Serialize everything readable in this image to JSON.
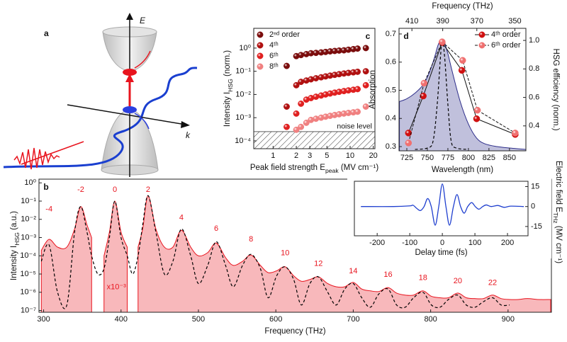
{
  "diagram": {
    "panel_label": "a",
    "energy_label": "E",
    "momentum_label": "k"
  },
  "chart_data": [
    {
      "type": "line",
      "panel_label": "b",
      "xlabel": "Frequency (THz)",
      "ylabel": {
        "text": "Intensity I",
        "sub": "HSG",
        "after": " (a.u.)"
      },
      "xlim": [
        294,
        956
      ],
      "ylim": [
        8e-08,
        1.6
      ],
      "ylog": true,
      "xticks": [
        300,
        400,
        500,
        600,
        700,
        800,
        900
      ],
      "yticks": [
        {
          "value": 1e-07,
          "label": "10⁻⁷"
        },
        {
          "value": 1e-06,
          "label": "10⁻⁶"
        },
        {
          "value": 1e-05,
          "label": "10⁻⁵"
        },
        {
          "value": 0.0001,
          "label": "10⁻⁴"
        },
        {
          "value": 0.001,
          "label": "10⁻³"
        },
        {
          "value": 0.01,
          "label": "10⁻²"
        },
        {
          "value": 0.1,
          "label": "10⁻¹"
        },
        {
          "value": 1,
          "label": "10⁰"
        }
      ],
      "x": [
        297,
        307,
        318,
        330,
        340,
        348,
        356,
        362,
        370,
        378,
        385,
        392,
        400,
        408,
        415,
        422,
        428,
        435,
        445,
        456,
        467,
        478,
        490,
        500,
        512,
        523,
        535,
        545,
        557,
        568,
        580,
        590,
        601,
        612,
        623,
        633,
        644,
        655,
        667,
        678,
        689,
        700,
        711,
        722,
        733,
        745,
        756,
        767,
        778,
        790,
        801,
        812,
        823,
        835,
        846,
        857,
        868,
        880,
        891,
        902,
        913,
        925,
        940,
        955
      ],
      "series": [
        {
          "style": "area",
          "color": "#e8141e",
          "values": [
            0.0002,
            0.0008,
            0.0003,
            0.0003,
            0.003,
            0.05,
            0.005,
            0.001,
            null,
            0.0001,
            0.002,
            0.1,
            0.002,
            0.0003,
            null,
            0.0003,
            0.003,
            0.2,
            0.003,
            0.0003,
            0.0003,
            0.0025,
            0.0003,
            0.0001,
            0.00015,
            0.0005,
            8e-05,
            3e-05,
            5e-05,
            0.00011,
            3e-05,
            1.2e-05,
            1.5e-05,
            2.5e-05,
            8e-06,
            4e-06,
            5e-06,
            7e-06,
            3e-06,
            2e-06,
            2e-06,
            3.5e-06,
            1.5e-06,
            1.2e-06,
            1.1e-06,
            1.8e-06,
            9e-07,
            7e-07,
            7e-07,
            1.2e-06,
            6e-07,
            5e-07,
            5e-07,
            9e-07,
            5e-07,
            4.5e-07,
            4.5e-07,
            7e-07,
            4.5e-07,
            4e-07,
            4e-07,
            4.5e-07,
            4e-07,
            4e-07
          ]
        },
        {
          "style": "dashed",
          "color": "#000000",
          "values": [
            5e-05,
            0.0004,
            1e-06,
            2e-07,
            0.002,
            0.05,
            0.002,
            0.0001,
            1e-05,
            2e-05,
            0.001,
            0.1,
            0.001,
            0.0001,
            1e-05,
            0.0001,
            0.005,
            0.2,
            0.002,
            1e-05,
            5e-05,
            0.003,
            0.0001,
            3e-06,
            3e-05,
            0.0006,
            3e-05,
            2e-06,
            3e-05,
            0.00012,
            2e-05,
            5e-07,
            8e-06,
            2.5e-05,
            5e-06,
            2e-07,
            3e-06,
            7e-06,
            1e-06,
            2e-07,
            1.5e-06,
            3e-06,
            5e-07,
            1.5e-07,
            8e-07,
            1.5e-06,
            2e-07,
            1.5e-07,
            5e-07,
            1e-06,
            2e-07,
            1.5e-07,
            4e-07,
            7e-07,
            2e-07,
            1.5e-07,
            3e-07,
            5e-07,
            2e-07,
            2e-07,
            null,
            null,
            null,
            null
          ]
        }
      ],
      "annotation_color": "#e8141e",
      "annotations": [
        {
          "text": "-4",
          "x": 307,
          "y": 0.036
        },
        {
          "text": "-2",
          "x": 348,
          "y": 0.41
        },
        {
          "text": "0",
          "x": 392,
          "y": 0.41
        },
        {
          "text": "2",
          "x": 435,
          "y": 0.41
        },
        {
          "text": "4",
          "x": 478,
          "y": 0.012
        },
        {
          "text": "6",
          "x": 523,
          "y": 0.003
        },
        {
          "text": "8",
          "x": 568,
          "y": 0.0008
        },
        {
          "text": "10",
          "x": 612,
          "y": 0.00014
        },
        {
          "text": "12",
          "x": 655,
          "y": 3.6e-05
        },
        {
          "text": "14",
          "x": 700,
          "y": 1.4e-05
        },
        {
          "text": "16",
          "x": 745,
          "y": 9e-06
        },
        {
          "text": "18",
          "x": 790,
          "y": 6e-06
        },
        {
          "text": "20",
          "x": 835,
          "y": 4e-06
        },
        {
          "text": "22",
          "x": 880,
          "y": 3.3e-06
        },
        {
          "text": "x10⁻³",
          "x": 394,
          "y": 1.9e-06
        }
      ]
    },
    {
      "type": "line",
      "yaxis_side": "right",
      "xlabel": "Delay time (fs)",
      "ylabel": {
        "text": "Electric field E",
        "sub": "THz",
        "after": " (MV cm⁻¹)"
      },
      "xlim": [
        -270,
        263
      ],
      "ylim": [
        -22,
        19
      ],
      "xticks": [
        -200,
        -100,
        0,
        100,
        200
      ],
      "yticks": [
        -15,
        0,
        15
      ],
      "x": [
        -250,
        -150,
        -100,
        -90,
        -78,
        -67,
        -56,
        -45,
        -34,
        -22,
        -11,
        0,
        11,
        22,
        34,
        45,
        56,
        67,
        78,
        90,
        101,
        112,
        124,
        135,
        150,
        170,
        190,
        210,
        250
      ],
      "series": [
        {
          "style": "line",
          "color": "#1f3fcf",
          "values": [
            0,
            0,
            0.5,
            1,
            -1.5,
            -3,
            0,
            6,
            0,
            -14,
            0,
            17,
            0,
            -14,
            0,
            9,
            0,
            -5,
            0,
            3,
            0,
            -2,
            0,
            1.2,
            0,
            0.8,
            -0.6,
            0.3,
            0
          ]
        }
      ]
    },
    {
      "type": "scatter",
      "panel_label": "c",
      "xlabel": {
        "text": "Peak field strength E",
        "sub": "peak",
        "after": " (MV cm⁻¹)"
      },
      "ylabel": {
        "text": "Intensity I",
        "sub": "HSG",
        "after": " (norm.)"
      },
      "xlog": true,
      "ylog": true,
      "xlim": [
        0.56,
        21
      ],
      "ylim": [
        4.6e-05,
        7.1
      ],
      "xticks": [
        1,
        2,
        3,
        5,
        10,
        20
      ],
      "yticks": [
        {
          "value": 0.0001,
          "label": "10⁻⁴"
        },
        {
          "value": 0.001,
          "label": "10⁻³"
        },
        {
          "value": 0.01,
          "label": "10⁻²"
        },
        {
          "value": 0.1,
          "label": "10⁻¹"
        },
        {
          "value": 1,
          "label": "10⁰"
        }
      ],
      "noise_level": 0.00025,
      "noise_label": "noise level",
      "legend": "upper left",
      "x": [
        1.5,
        2.0,
        2.3,
        2.7,
        3.1,
        3.6,
        4.2,
        4.8,
        5.5,
        6.3,
        7.2,
        8.3,
        9.5,
        11,
        12.5,
        16
      ],
      "series": [
        {
          "name": "2ⁿᵈ order",
          "color": "#7a0c0c",
          "values": [
            0.17,
            0.45,
            0.5,
            0.55,
            0.6,
            0.62,
            0.65,
            0.68,
            0.72,
            0.75,
            0.78,
            0.8,
            0.85,
            0.9,
            0.95,
            1.0
          ]
        },
        {
          "name": "4ᵗʰ",
          "color": "#b01010",
          "values": [
            0.003,
            0.025,
            0.035,
            0.04,
            0.045,
            0.05,
            0.055,
            0.06,
            0.065,
            0.07,
            0.075,
            0.08,
            0.085,
            0.09,
            0.095,
            0.1
          ]
        },
        {
          "name": "6ᵗʰ",
          "color": "#e02020",
          "values": [
            0.0004,
            0.0015,
            0.004,
            0.006,
            0.007,
            0.008,
            0.009,
            0.01,
            0.011,
            0.012,
            0.013,
            0.014,
            0.015,
            0.016,
            0.017,
            0.025
          ]
        },
        {
          "name": "8ᵗʰ",
          "color": "#f08080",
          "values": [
            null,
            0.0003,
            0.0004,
            0.0006,
            0.0008,
            0.0009,
            0.001,
            0.0011,
            0.0012,
            0.0013,
            0.0014,
            0.0015,
            0.0016,
            0.0017,
            0.0018,
            0.003
          ]
        }
      ]
    },
    {
      "type": "line",
      "panel_label": "d",
      "xlabel": "Wavelength (nm)",
      "x2label": "Frequency (THz)",
      "ylabel": "Absorption",
      "y2label": "HSG efficiency (norm.)",
      "xlim": [
        715.5,
        870
      ],
      "ylim": [
        0.285,
        0.72
      ],
      "y2lim": [
        0.225,
        1.085
      ],
      "xticks": [
        725,
        750,
        775,
        800,
        825,
        850
      ],
      "x2ticks": [
        410,
        390,
        370,
        350
      ],
      "yticks": [
        0.3,
        0.4,
        0.5,
        0.6,
        0.7
      ],
      "y2ticks": [
        0.4,
        0.6,
        0.8,
        {
          "value": 1.0,
          "label": "1.0"
        }
      ],
      "legend": "upper right",
      "series": [
        {
          "style": "area",
          "color": "#2e2e8a",
          "x": [
            716,
            725,
            735,
            745,
            752,
            758,
            763,
            767,
            770,
            775,
            780,
            790,
            800,
            810,
            820,
            835,
            850,
            870
          ],
          "values": [
            0.46,
            0.47,
            0.49,
            0.52,
            0.56,
            0.61,
            0.66,
            0.68,
            0.675,
            0.63,
            0.57,
            0.46,
            0.38,
            0.33,
            0.31,
            0.3,
            0.295,
            0.29
          ]
        },
        {
          "style": "dashed",
          "color": "#000000",
          "x": [
            735,
            750,
            757,
            762,
            766,
            768,
            771,
            775,
            779,
            785,
            800
          ],
          "values": [
            0.29,
            0.295,
            0.32,
            0.45,
            0.62,
            0.68,
            0.62,
            0.45,
            0.32,
            0.295,
            0.29
          ]
        },
        {
          "name": "4ᵗʰ order",
          "style": "markers-line",
          "axis": "y2",
          "color": "#d01010",
          "x": [
            727,
            745,
            768,
            792,
            810,
            857
          ],
          "values": [
            0.35,
            0.61,
            0.985,
            0.79,
            0.45,
            0.34
          ]
        },
        {
          "name": "6ᵗʰ order",
          "style": "markers-dashed",
          "axis": "y2",
          "color": "#f07070",
          "x": [
            727,
            746,
            768,
            793,
            811,
            857
          ],
          "values": [
            0.28,
            0.7,
            0.99,
            0.86,
            0.51,
            0.35
          ]
        }
      ]
    }
  ]
}
